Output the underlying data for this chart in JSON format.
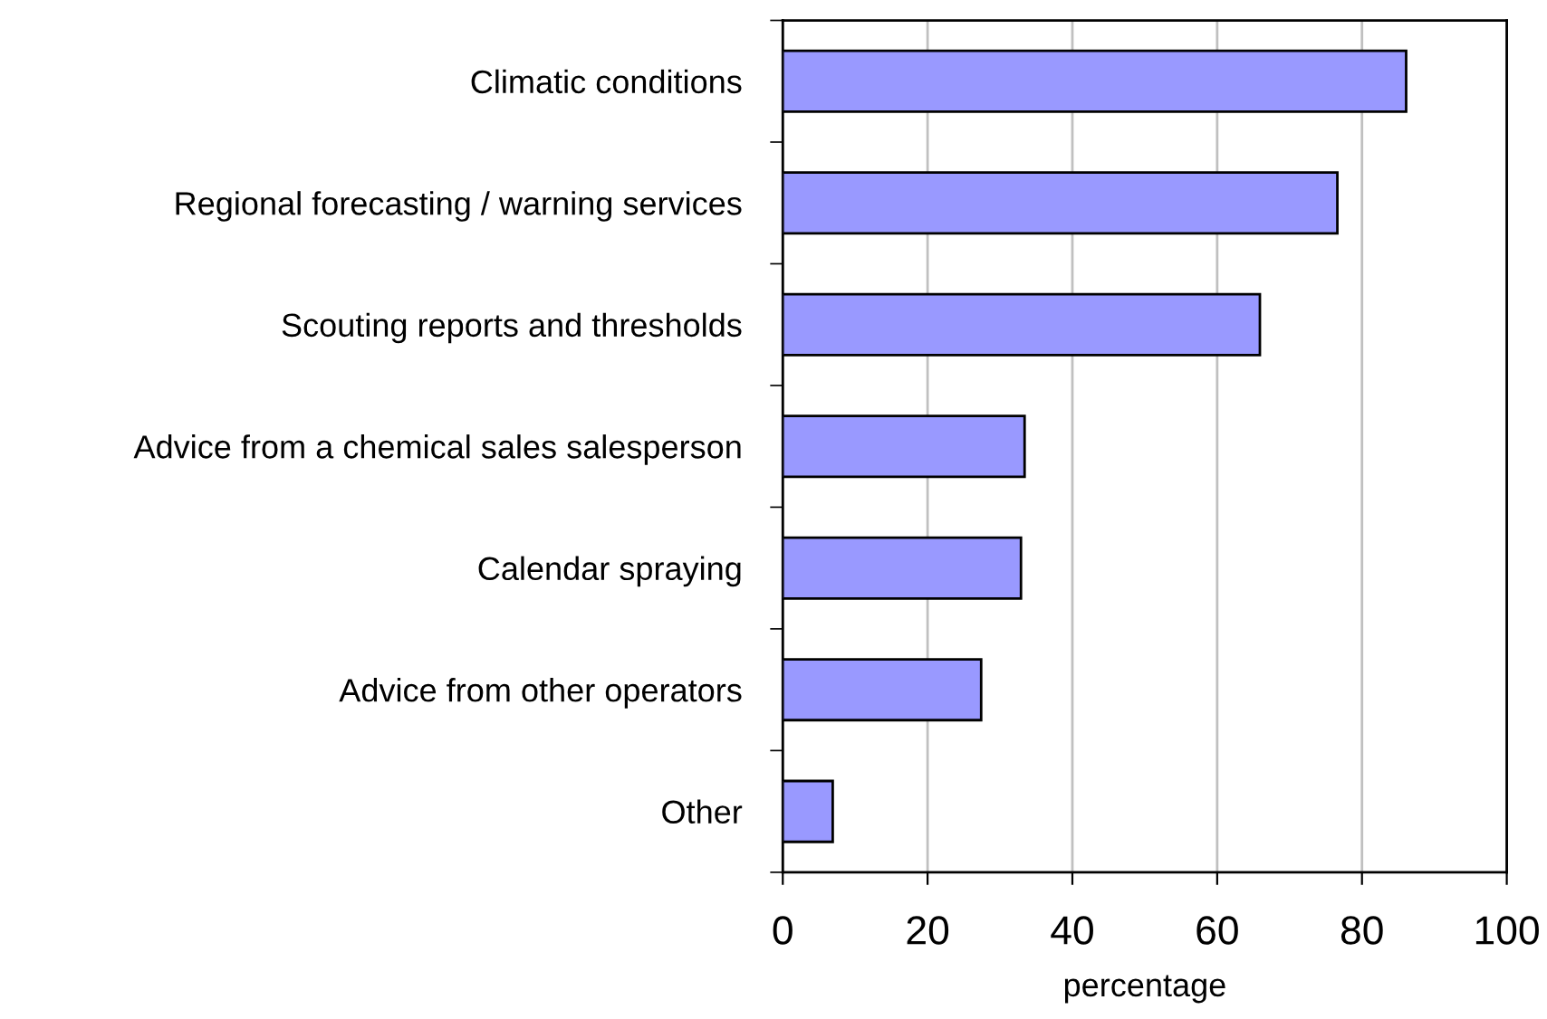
{
  "chart_data": {
    "type": "bar",
    "orientation": "horizontal",
    "categories": [
      "Climatic conditions",
      "Regional forecasting / warning services",
      "Scouting reports and thresholds",
      "Advice from a chemical sales salesperson",
      "Calendar spraying",
      "Advice from other operators",
      "Other"
    ],
    "values": [
      86.1,
      76.6,
      65.9,
      33.4,
      32.9,
      27.4,
      6.9
    ],
    "color": "#9999ff",
    "xlabel": "percentage",
    "xlim": [
      0,
      100
    ],
    "xticks": [
      0,
      20,
      40,
      60,
      80,
      100
    ],
    "grid": "x"
  }
}
